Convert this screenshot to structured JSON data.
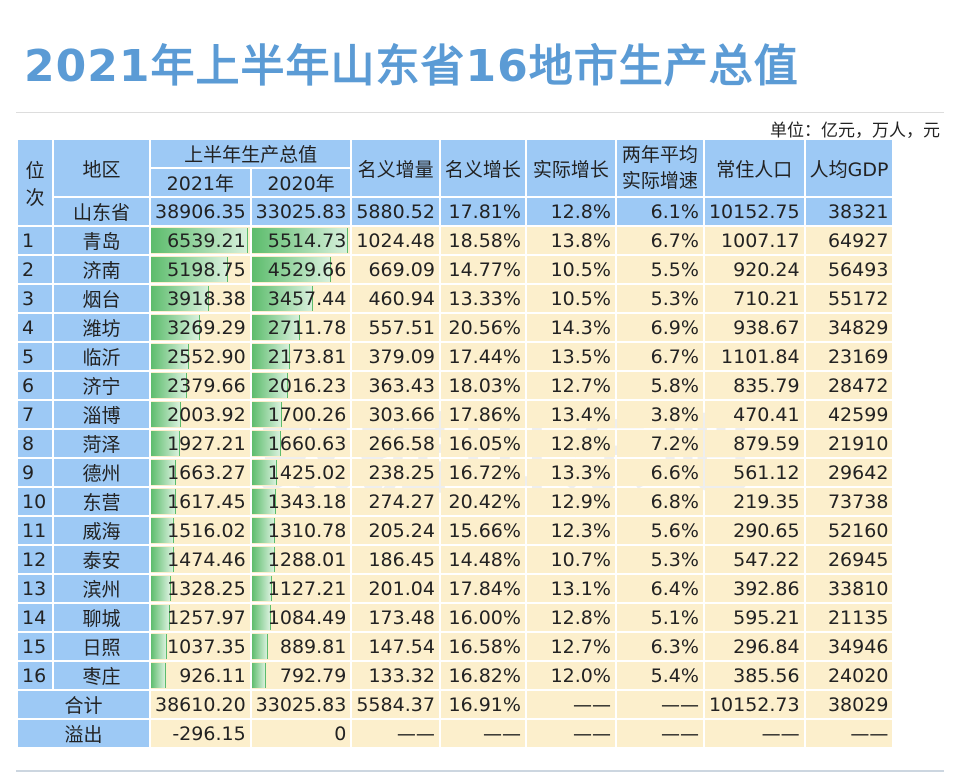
{
  "title": "2021年上半年山东省16地市生产总值",
  "unit": "单位：亿元，万人，元",
  "watermark": "数据山东吧",
  "headers": {
    "rank": "位次",
    "region": "地区",
    "gdp": "上半年生产总值",
    "y2021": "2021年",
    "y2020": "2020年",
    "nominal_inc": "名义增量",
    "nominal_growth": "名义增长",
    "real_growth": "实际增长",
    "two_year": "两年平均实际增速",
    "population": "常住人口",
    "per_capita": "人均GDP"
  },
  "colors": {
    "header": "#9dc9f5",
    "body": "#fcefcc",
    "bar": "#5cbc6c",
    "title": "#5b9bd5"
  },
  "province": {
    "name": "山东省",
    "y2021": "38906.35",
    "y2020": "33025.83",
    "inc": "5880.52",
    "ng": "17.81%",
    "rg": "12.8%",
    "ty": "6.1%",
    "pop": "10152.75",
    "pc": "38321"
  },
  "rows": [
    {
      "rank": "1",
      "name": "青岛",
      "y2021": "6539.21",
      "y2020": "5514.73",
      "inc": "1024.48",
      "ng": "18.58%",
      "rg": "13.8%",
      "ty": "6.7%",
      "pop": "1007.17",
      "pc": "64927"
    },
    {
      "rank": "2",
      "name": "济南",
      "y2021": "5198.75",
      "y2020": "4529.66",
      "inc": "669.09",
      "ng": "14.77%",
      "rg": "10.5%",
      "ty": "5.5%",
      "pop": "920.24",
      "pc": "56493"
    },
    {
      "rank": "3",
      "name": "烟台",
      "y2021": "3918.38",
      "y2020": "3457.44",
      "inc": "460.94",
      "ng": "13.33%",
      "rg": "10.5%",
      "ty": "5.3%",
      "pop": "710.21",
      "pc": "55172"
    },
    {
      "rank": "4",
      "name": "潍坊",
      "y2021": "3269.29",
      "y2020": "2711.78",
      "inc": "557.51",
      "ng": "20.56%",
      "rg": "14.3%",
      "ty": "6.9%",
      "pop": "938.67",
      "pc": "34829"
    },
    {
      "rank": "5",
      "name": "临沂",
      "y2021": "2552.90",
      "y2020": "2173.81",
      "inc": "379.09",
      "ng": "17.44%",
      "rg": "13.5%",
      "ty": "6.7%",
      "pop": "1101.84",
      "pc": "23169"
    },
    {
      "rank": "6",
      "name": "济宁",
      "y2021": "2379.66",
      "y2020": "2016.23",
      "inc": "363.43",
      "ng": "18.03%",
      "rg": "12.7%",
      "ty": "5.8%",
      "pop": "835.79",
      "pc": "28472"
    },
    {
      "rank": "7",
      "name": "淄博",
      "y2021": "2003.92",
      "y2020": "1700.26",
      "inc": "303.66",
      "ng": "17.86%",
      "rg": "13.4%",
      "ty": "3.8%",
      "pop": "470.41",
      "pc": "42599"
    },
    {
      "rank": "8",
      "name": "菏泽",
      "y2021": "1927.21",
      "y2020": "1660.63",
      "inc": "266.58",
      "ng": "16.05%",
      "rg": "12.8%",
      "ty": "7.2%",
      "pop": "879.59",
      "pc": "21910"
    },
    {
      "rank": "9",
      "name": "德州",
      "y2021": "1663.27",
      "y2020": "1425.02",
      "inc": "238.25",
      "ng": "16.72%",
      "rg": "13.3%",
      "ty": "6.6%",
      "pop": "561.12",
      "pc": "29642"
    },
    {
      "rank": "10",
      "name": "东营",
      "y2021": "1617.45",
      "y2020": "1343.18",
      "inc": "274.27",
      "ng": "20.42%",
      "rg": "12.9%",
      "ty": "6.8%",
      "pop": "219.35",
      "pc": "73738"
    },
    {
      "rank": "11",
      "name": "威海",
      "y2021": "1516.02",
      "y2020": "1310.78",
      "inc": "205.24",
      "ng": "15.66%",
      "rg": "12.3%",
      "ty": "5.6%",
      "pop": "290.65",
      "pc": "52160"
    },
    {
      "rank": "12",
      "name": "泰安",
      "y2021": "1474.46",
      "y2020": "1288.01",
      "inc": "186.45",
      "ng": "14.48%",
      "rg": "10.7%",
      "ty": "5.3%",
      "pop": "547.22",
      "pc": "26945"
    },
    {
      "rank": "13",
      "name": "滨州",
      "y2021": "1328.25",
      "y2020": "1127.21",
      "inc": "201.04",
      "ng": "17.84%",
      "rg": "13.1%",
      "ty": "6.4%",
      "pop": "392.86",
      "pc": "33810"
    },
    {
      "rank": "14",
      "name": "聊城",
      "y2021": "1257.97",
      "y2020": "1084.49",
      "inc": "173.48",
      "ng": "16.00%",
      "rg": "12.8%",
      "ty": "5.1%",
      "pop": "595.21",
      "pc": "21135"
    },
    {
      "rank": "15",
      "name": "日照",
      "y2021": "1037.35",
      "y2020": "889.81",
      "inc": "147.54",
      "ng": "16.58%",
      "rg": "12.7%",
      "ty": "6.3%",
      "pop": "296.84",
      "pc": "34946"
    },
    {
      "rank": "16",
      "name": "枣庄",
      "y2021": "926.11",
      "y2020": "792.79",
      "inc": "133.32",
      "ng": "16.82%",
      "rg": "12.0%",
      "ty": "5.4%",
      "pop": "385.56",
      "pc": "24020"
    }
  ],
  "total": {
    "label": "合计",
    "y2021": "38610.20",
    "y2020": "33025.83",
    "inc": "5584.37",
    "ng": "16.91%",
    "rg": "——",
    "ty": "——",
    "pop": "10152.73",
    "pc": "38029"
  },
  "overflow": {
    "label": "溢出",
    "y2021": "-296.15",
    "y2020": "0",
    "inc": "——",
    "ng": "——",
    "rg": "——",
    "ty": "——",
    "pop": "——",
    "pc": "——"
  }
}
